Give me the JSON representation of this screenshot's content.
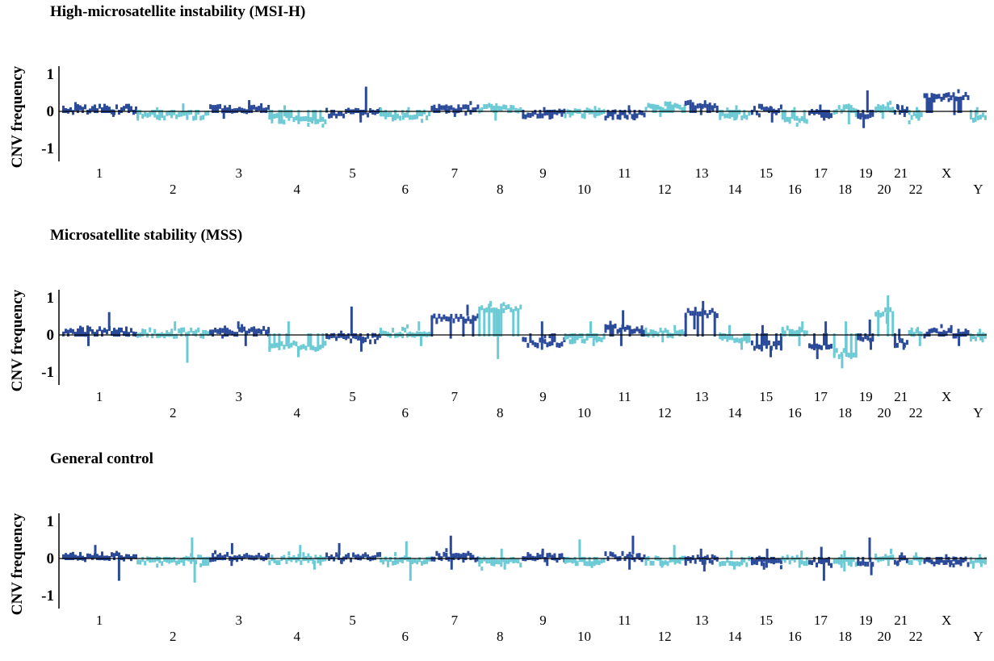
{
  "colors": {
    "dark": "#2b4a9a",
    "light": "#6ccad4",
    "axis": "#000000"
  },
  "chart_data": [
    {
      "type": "scatter",
      "title": "High-microsatellite instability (MSI-H)",
      "ylabel": "CNV frequency",
      "ylim": [
        -1,
        1
      ],
      "yticks": [
        "1",
        "0",
        "-1"
      ],
      "chromosomes": [
        "1",
        "2",
        "3",
        "4",
        "5",
        "6",
        "7",
        "8",
        "9",
        "10",
        "11",
        "12",
        "13",
        "14",
        "15",
        "16",
        "17",
        "18",
        "19",
        "20",
        "21",
        "22",
        "X",
        "Y"
      ],
      "series": [
        {
          "values": [
            0.05,
            -0.1,
            0.08,
            -0.2,
            -0.05,
            -0.1,
            0.05,
            0.1,
            -0.08,
            -0.05,
            -0.1,
            0.12,
            0.15,
            -0.1,
            0.05,
            -0.2,
            -0.08,
            0.06,
            -0.1,
            0.1,
            0.05,
            -0.12,
            0.4,
            -0.15
          ]
        },
        {
          "values": [
            0.1,
            0.15,
            0.05,
            0.1,
            0.6,
            0.05,
            0.08,
            0.12,
            0.05,
            0.08,
            0.1,
            0.08,
            0.05,
            0.1,
            0.08,
            0.05,
            0.12,
            0.06,
            0.5,
            0.08,
            0.1,
            0.05,
            0.06,
            0.05
          ]
        },
        {
          "values": [
            -0.15,
            -0.2,
            -0.2,
            -0.3,
            -0.3,
            -0.15,
            -0.15,
            -0.25,
            -0.1,
            -0.15,
            -0.2,
            -0.15,
            -0.1,
            -0.2,
            -0.3,
            -0.2,
            -0.25,
            -0.35,
            -0.45,
            -0.2,
            -0.15,
            -0.15,
            -0.1,
            -0.1
          ]
        }
      ]
    },
    {
      "type": "scatter",
      "title": "Microsatellite stability (MSS)",
      "ylabel": "CNV frequency",
      "ylim": [
        -1,
        1
      ],
      "yticks": [
        "1",
        "0",
        "-1"
      ],
      "chromosomes": [
        "1",
        "2",
        "3",
        "4",
        "5",
        "6",
        "7",
        "8",
        "9",
        "10",
        "11",
        "12",
        "13",
        "14",
        "15",
        "16",
        "17",
        "18",
        "19",
        "20",
        "21",
        "22",
        "X",
        "Y"
      ],
      "series": [
        {
          "values": [
            0.1,
            0.05,
            0.1,
            -0.3,
            -0.1,
            0.05,
            0.45,
            0.7,
            -0.2,
            -0.1,
            0.15,
            0.05,
            0.6,
            -0.1,
            -0.3,
            0.1,
            -0.3,
            -0.5,
            -0.1,
            0.6,
            -0.2,
            0.1,
            0.05,
            -0.05
          ]
        },
        {
          "values": [
            0.55,
            0.3,
            0.3,
            0.3,
            0.7,
            0.3,
            0.75,
            0.85,
            0.3,
            0.3,
            0.6,
            0.2,
            0.85,
            0.2,
            0.2,
            0.3,
            0.3,
            0.3,
            0.35,
            1.0,
            0.1,
            0.15,
            0.2,
            0.1
          ]
        },
        {
          "values": [
            -0.3,
            -0.75,
            -0.3,
            -0.6,
            -0.45,
            -0.3,
            -0.1,
            -0.65,
            -0.4,
            -0.3,
            -0.3,
            -0.2,
            0.15,
            -0.4,
            -0.6,
            -0.3,
            -0.65,
            -0.9,
            -0.4,
            0.3,
            -0.4,
            -0.3,
            -0.3,
            -0.2
          ]
        }
      ]
    },
    {
      "type": "scatter",
      "title": "General control",
      "ylabel": "CNV frequency",
      "ylim": [
        -1,
        1
      ],
      "yticks": [
        "1",
        "0",
        "-1"
      ],
      "chromosomes": [
        "1",
        "2",
        "3",
        "4",
        "5",
        "6",
        "7",
        "8",
        "9",
        "10",
        "11",
        "12",
        "13",
        "14",
        "15",
        "16",
        "17",
        "18",
        "19",
        "20",
        "21",
        "22",
        "X",
        "Y"
      ],
      "series": [
        {
          "values": [
            0.05,
            -0.05,
            0.05,
            -0.05,
            0.02,
            -0.05,
            0.05,
            -0.1,
            0.02,
            -0.05,
            0.05,
            -0.05,
            -0.05,
            -0.08,
            -0.1,
            -0.05,
            -0.1,
            -0.1,
            -0.1,
            0.05,
            -0.05,
            -0.05,
            -0.1,
            -0.1
          ]
        },
        {
          "values": [
            0.3,
            0.5,
            0.35,
            0.3,
            0.35,
            0.4,
            0.55,
            0.2,
            0.2,
            0.45,
            0.55,
            0.3,
            0.2,
            0.15,
            0.2,
            0.15,
            0.25,
            0.15,
            0.5,
            0.2,
            0.1,
            0.1,
            0.05,
            0.05
          ]
        },
        {
          "values": [
            -0.6,
            -0.65,
            -0.2,
            -0.3,
            -0.15,
            -0.6,
            -0.3,
            -0.3,
            -0.2,
            -0.2,
            -0.3,
            -0.25,
            -0.35,
            -0.3,
            -0.3,
            -0.25,
            -0.6,
            -0.35,
            -0.45,
            -0.2,
            -0.15,
            -0.1,
            -0.15,
            -0.1
          ]
        }
      ]
    }
  ]
}
